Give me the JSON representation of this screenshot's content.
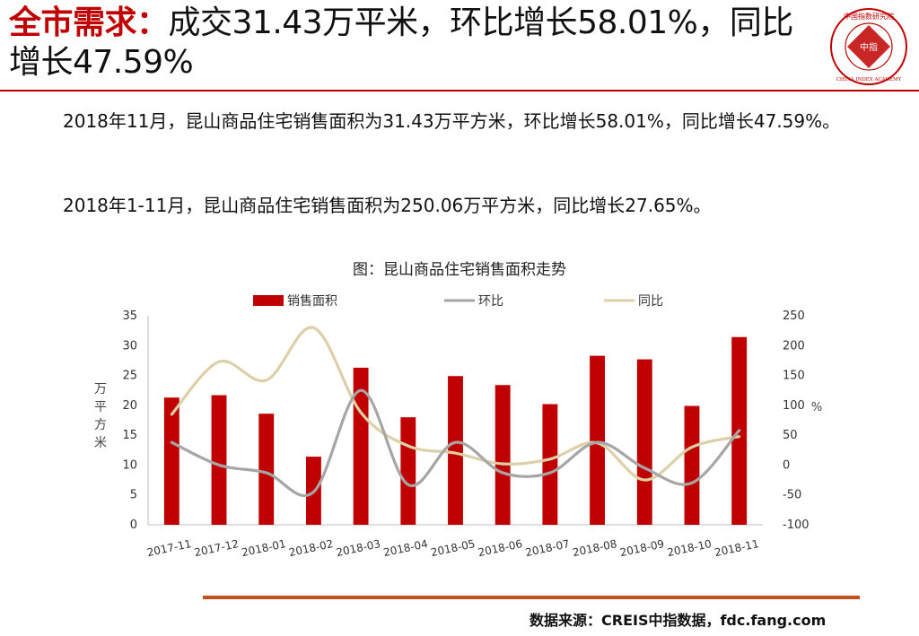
{
  "header": {
    "title_highlight": "全市需求：",
    "title_text": "成交31.43万平米，环比增长58.01%，同比增长47.59%",
    "logo_center": "中指",
    "logo_ring_top": "中国指数研究院",
    "logo_ring_bottom": "CHINA INDEX ACADEMY"
  },
  "body": {
    "paragraph1": "2018年11月，昆山商品住宅销售面积为31.43万平方米，环比增长58.01%，同比增长47.59%。",
    "paragraph2": "2018年1-11月，昆山商品住宅销售面积为250.06万平方米，同比增长27.65%。"
  },
  "chart_data": {
    "type": "bar",
    "title": "图：昆山商品住宅销售面积走势",
    "categories": [
      "2017-11",
      "2017-12",
      "2018-01",
      "2018-02",
      "2018-03",
      "2018-04",
      "2018-05",
      "2018-06",
      "2018-07",
      "2018-08",
      "2018-09",
      "2018-10",
      "2018-11"
    ],
    "series": [
      {
        "name": "销售面积",
        "type": "bar",
        "axis": "left",
        "color": "#c00000",
        "values": [
          21.3,
          21.7,
          18.6,
          11.4,
          26.3,
          18.0,
          24.9,
          23.4,
          20.2,
          28.3,
          27.7,
          19.9,
          31.43
        ]
      },
      {
        "name": "环比",
        "type": "line",
        "axis": "right",
        "color": "#a6a6a6",
        "values": [
          38,
          0,
          -13,
          -45,
          125,
          -33,
          38,
          -13,
          -13,
          38,
          -5,
          -30,
          58.01
        ]
      },
      {
        "name": "同比",
        "type": "line",
        "axis": "right",
        "color": "#ddd0a8",
        "values": [
          85,
          173,
          142,
          230,
          88,
          32,
          20,
          2,
          10,
          37,
          -25,
          30,
          47.59
        ]
      }
    ],
    "ylabel": "万平方米",
    "ylim": [
      0,
      35
    ],
    "yticks": [
      0,
      5,
      10,
      15,
      20,
      25,
      30,
      35
    ],
    "y2label": "%",
    "y2lim": [
      -100,
      250
    ],
    "y2ticks": [
      -100,
      -50,
      0,
      50,
      100,
      150,
      200,
      250
    ],
    "legend_position": "top",
    "grid": false
  },
  "footer": {
    "source": "数据来源：CREIS中指数据，fdc.fang.com"
  },
  "colors": {
    "accent": "#c00000",
    "footer_line": "#c0501c"
  }
}
